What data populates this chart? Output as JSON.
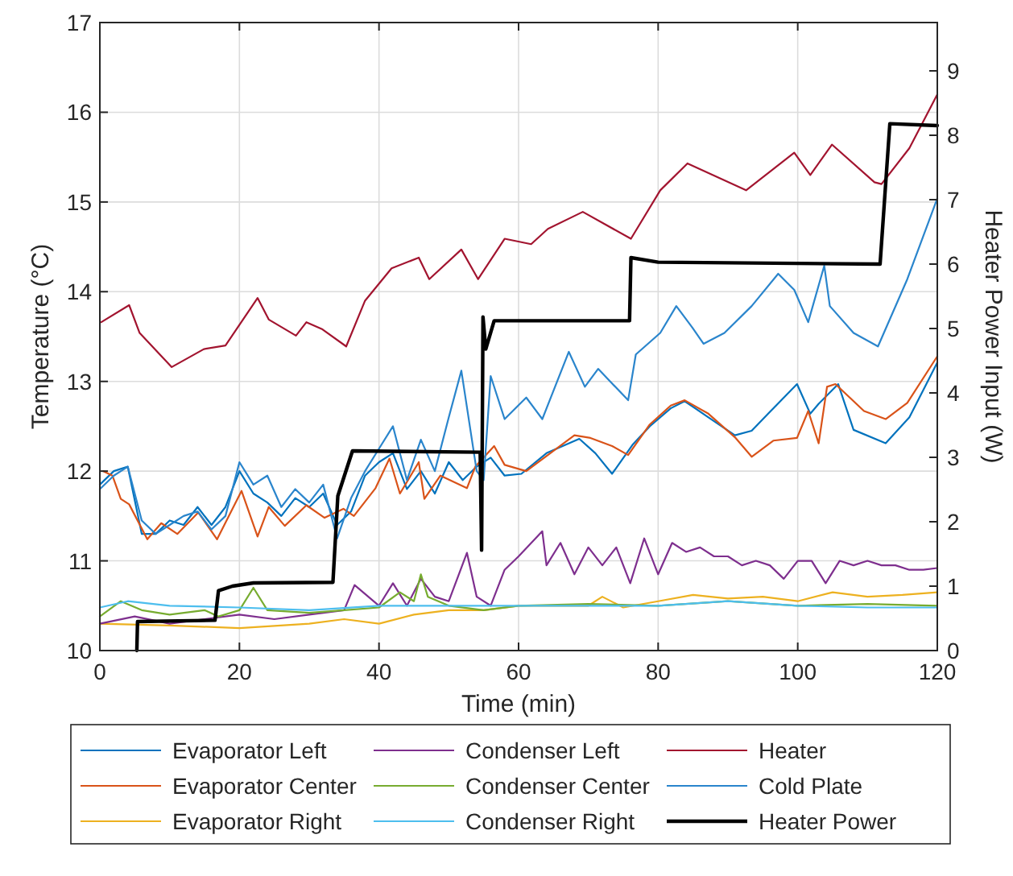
{
  "chart_data": {
    "type": "line",
    "xlabel": "Time (min)",
    "ylabel": "Temperature (°C)",
    "y2label": "Heater Power Input (W)",
    "xlim": [
      0,
      120
    ],
    "xticks": [
      0,
      20,
      40,
      60,
      80,
      100,
      120
    ],
    "ylim": [
      10,
      17
    ],
    "yticks": [
      10,
      11,
      12,
      13,
      14,
      15,
      16,
      17
    ],
    "y2lim": [
      0,
      9.75
    ],
    "y2ticks": [
      0,
      1,
      2,
      3,
      4,
      5,
      6,
      7,
      8,
      9
    ],
    "grid": true,
    "legend": "bottom",
    "line_style": "solid",
    "series": [
      {
        "name": "Evaporator Left",
        "color": "#0072bd",
        "x": [
          0,
          2,
          4,
          6,
          8,
          10,
          12,
          14,
          16,
          18,
          20,
          22,
          24,
          26,
          28,
          30,
          32,
          34,
          36,
          38,
          40,
          42,
          44,
          46,
          48,
          50,
          52,
          54,
          56,
          58,
          60.4,
          64,
          68.7,
          71,
          73.4,
          76.4,
          78.8,
          81.8,
          83.8,
          87.2,
          91,
          93.4,
          96.5,
          99.9,
          101.8,
          103,
          105.8,
          108,
          112.6,
          116,
          120
        ],
        "values": [
          11.85,
          12.0,
          12.05,
          11.3,
          11.3,
          11.45,
          11.4,
          11.6,
          11.4,
          11.6,
          12.0,
          11.75,
          11.65,
          11.5,
          11.7,
          11.6,
          11.75,
          11.4,
          11.55,
          11.95,
          12.1,
          12.2,
          11.8,
          12.0,
          11.75,
          12.1,
          11.9,
          12.05,
          12.15,
          11.95,
          11.97,
          12.2,
          12.36,
          12.2,
          11.97,
          12.3,
          12.5,
          12.7,
          12.78,
          12.6,
          12.4,
          12.45,
          12.7,
          12.97,
          12.64,
          12.75,
          12.97,
          12.46,
          12.31,
          12.6,
          13.21
        ]
      },
      {
        "name": "Evaporator Center",
        "color": "#d95319",
        "x": [
          0.5,
          1.8,
          3,
          4.2,
          6.8,
          8.8,
          11.1,
          14.1,
          16.8,
          20.3,
          22.6,
          24.2,
          26.5,
          29.6,
          32.2,
          34.9,
          36.4,
          39.5,
          41.5,
          43,
          45.7,
          46.5,
          48.8,
          52.6,
          53.8,
          56.5,
          58,
          61.1,
          64.2,
          68,
          70.3,
          73.4,
          75.7,
          78.8,
          81.8,
          83.8,
          87.2,
          91.1,
          93.4,
          96.5,
          99.9,
          101.5,
          103,
          104.2,
          105.4,
          109.5,
          112.6,
          115.7,
          120
        ],
        "values": [
          12.0,
          11.95,
          11.69,
          11.63,
          11.24,
          11.42,
          11.3,
          11.54,
          11.24,
          11.78,
          11.27,
          11.6,
          11.39,
          11.62,
          11.48,
          11.58,
          11.5,
          11.81,
          12.14,
          11.75,
          12.1,
          11.69,
          11.95,
          11.81,
          12.05,
          12.28,
          12.07,
          12.0,
          12.18,
          12.4,
          12.37,
          12.28,
          12.18,
          12.52,
          12.73,
          12.79,
          12.64,
          12.37,
          12.16,
          12.34,
          12.37,
          12.67,
          12.31,
          12.94,
          12.97,
          12.67,
          12.58,
          12.76,
          13.28
        ]
      },
      {
        "name": "Evaporator Right",
        "color": "#edb120",
        "x": [
          0,
          10,
          20,
          30,
          35,
          40,
          45,
          50,
          55,
          60,
          70,
          72,
          75,
          80,
          85,
          90,
          95,
          100,
          105,
          110,
          115,
          120
        ],
        "values": [
          10.3,
          10.28,
          10.25,
          10.3,
          10.35,
          10.3,
          10.4,
          10.45,
          10.45,
          10.5,
          10.5,
          10.6,
          10.48,
          10.55,
          10.62,
          10.58,
          10.6,
          10.55,
          10.65,
          10.6,
          10.62,
          10.65
        ]
      },
      {
        "name": "Condenser Left",
        "color": "#7e2f8e",
        "x": [
          0,
          5,
          10,
          15,
          20,
          25,
          30,
          35,
          36.5,
          40,
          42,
          44,
          46,
          48,
          50,
          52.6,
          54,
          56,
          58,
          60,
          63.4,
          64,
          66,
          68,
          70,
          72,
          74,
          76,
          78,
          80,
          82,
          84,
          86,
          88,
          90,
          92,
          94,
          96,
          98,
          100,
          102,
          104,
          106,
          108,
          110,
          112,
          114,
          116,
          118,
          120
        ],
        "values": [
          10.3,
          10.38,
          10.3,
          10.35,
          10.4,
          10.35,
          10.4,
          10.45,
          10.73,
          10.5,
          10.75,
          10.5,
          10.8,
          10.6,
          10.55,
          11.09,
          10.6,
          10.5,
          10.9,
          11.05,
          11.33,
          10.95,
          11.2,
          10.85,
          11.15,
          10.95,
          11.15,
          10.75,
          11.25,
          10.85,
          11.2,
          11.1,
          11.15,
          11.05,
          11.05,
          10.95,
          11.0,
          10.95,
          10.8,
          11.0,
          11.0,
          10.75,
          11.0,
          10.95,
          11.0,
          10.95,
          10.95,
          10.9,
          10.9,
          10.92
        ]
      },
      {
        "name": "Condenser Center",
        "color": "#77ac30",
        "x": [
          0,
          3,
          6,
          10,
          15,
          17,
          20,
          22,
          24,
          30,
          35,
          40,
          43,
          45,
          46,
          47,
          50,
          55,
          60,
          70,
          80,
          90,
          100,
          110,
          120
        ],
        "values": [
          10.38,
          10.55,
          10.45,
          10.4,
          10.45,
          10.38,
          10.45,
          10.7,
          10.45,
          10.42,
          10.45,
          10.48,
          10.65,
          10.55,
          10.85,
          10.6,
          10.5,
          10.45,
          10.5,
          10.52,
          10.5,
          10.55,
          10.5,
          10.52,
          10.5
        ]
      },
      {
        "name": "Condenser Right",
        "color": "#4dbeee",
        "x": [
          0,
          4,
          10,
          20,
          30,
          40,
          50,
          60,
          70,
          80,
          90,
          100,
          110,
          120
        ],
        "values": [
          10.48,
          10.55,
          10.5,
          10.48,
          10.45,
          10.5,
          10.5,
          10.5,
          10.5,
          10.5,
          10.55,
          10.5,
          10.48,
          10.48
        ]
      },
      {
        "name": "Heater",
        "color": "#a2142f",
        "x": [
          0.2,
          4.2,
          5.7,
          10.3,
          14.9,
          18,
          22.6,
          24.2,
          28.1,
          29.6,
          31.9,
          35.3,
          38,
          41.8,
          45.7,
          47.2,
          51.8,
          54.2,
          58,
          61.8,
          64.2,
          69.2,
          76.1,
          80.3,
          84.2,
          92.6,
          99.5,
          101.8,
          104.9,
          111,
          112,
          116,
          120
        ],
        "values": [
          13.66,
          13.85,
          13.54,
          13.16,
          13.36,
          13.4,
          13.93,
          13.69,
          13.51,
          13.66,
          13.58,
          13.39,
          13.9,
          14.26,
          14.38,
          14.14,
          14.47,
          14.14,
          14.59,
          14.53,
          14.7,
          14.89,
          14.59,
          15.13,
          15.43,
          15.13,
          15.55,
          15.3,
          15.64,
          15.22,
          15.2,
          15.6,
          16.2
        ]
      },
      {
        "name": "Cold Plate",
        "color": "#2a85cc",
        "x": [
          0,
          2,
          4,
          6,
          8,
          10,
          12,
          14,
          16,
          18,
          20,
          22,
          24,
          26,
          28,
          30,
          32,
          34,
          36,
          38,
          40,
          42,
          44,
          46,
          48,
          50,
          51.8,
          54,
          55,
          56,
          58,
          61.1,
          63.4,
          67.2,
          69.5,
          71.4,
          75.7,
          76.8,
          80.3,
          82.6,
          84.9,
          86.5,
          89.5,
          93.4,
          97.2,
          99.5,
          101.5,
          103.8,
          104.6,
          108,
          111.5,
          115.7,
          120
        ],
        "values": [
          11.8,
          11.95,
          12.05,
          11.45,
          11.3,
          11.4,
          11.5,
          11.55,
          11.35,
          11.5,
          12.1,
          11.85,
          11.95,
          11.6,
          11.8,
          11.65,
          11.85,
          11.25,
          11.7,
          12.0,
          12.25,
          12.5,
          11.9,
          12.35,
          12.0,
          12.6,
          13.12,
          12.0,
          11.9,
          13.06,
          12.58,
          12.82,
          12.58,
          13.33,
          12.94,
          13.14,
          12.79,
          13.3,
          13.54,
          13.84,
          13.6,
          13.42,
          13.54,
          13.84,
          14.2,
          14.02,
          13.66,
          14.29,
          13.84,
          13.54,
          13.39,
          14.14,
          15.04
        ]
      },
      {
        "name": "Heater Power",
        "color": "#000000",
        "axis": "y2",
        "x": [
          5.3,
          5.4,
          16.5,
          17,
          19,
          22,
          33.4,
          34.1,
          35,
          36.2,
          54.5,
          54.7,
          54.9,
          55.3,
          56.5,
          75.9,
          76.1,
          80,
          111.8,
          113.2,
          120
        ],
        "values": [
          0,
          0.45,
          0.47,
          0.93,
          1.0,
          1.05,
          1.06,
          2.4,
          2.7,
          3.1,
          3.08,
          1.56,
          5.18,
          4.68,
          5.12,
          5.12,
          6.1,
          6.03,
          6.0,
          8.18,
          8.15
        ]
      }
    ]
  }
}
